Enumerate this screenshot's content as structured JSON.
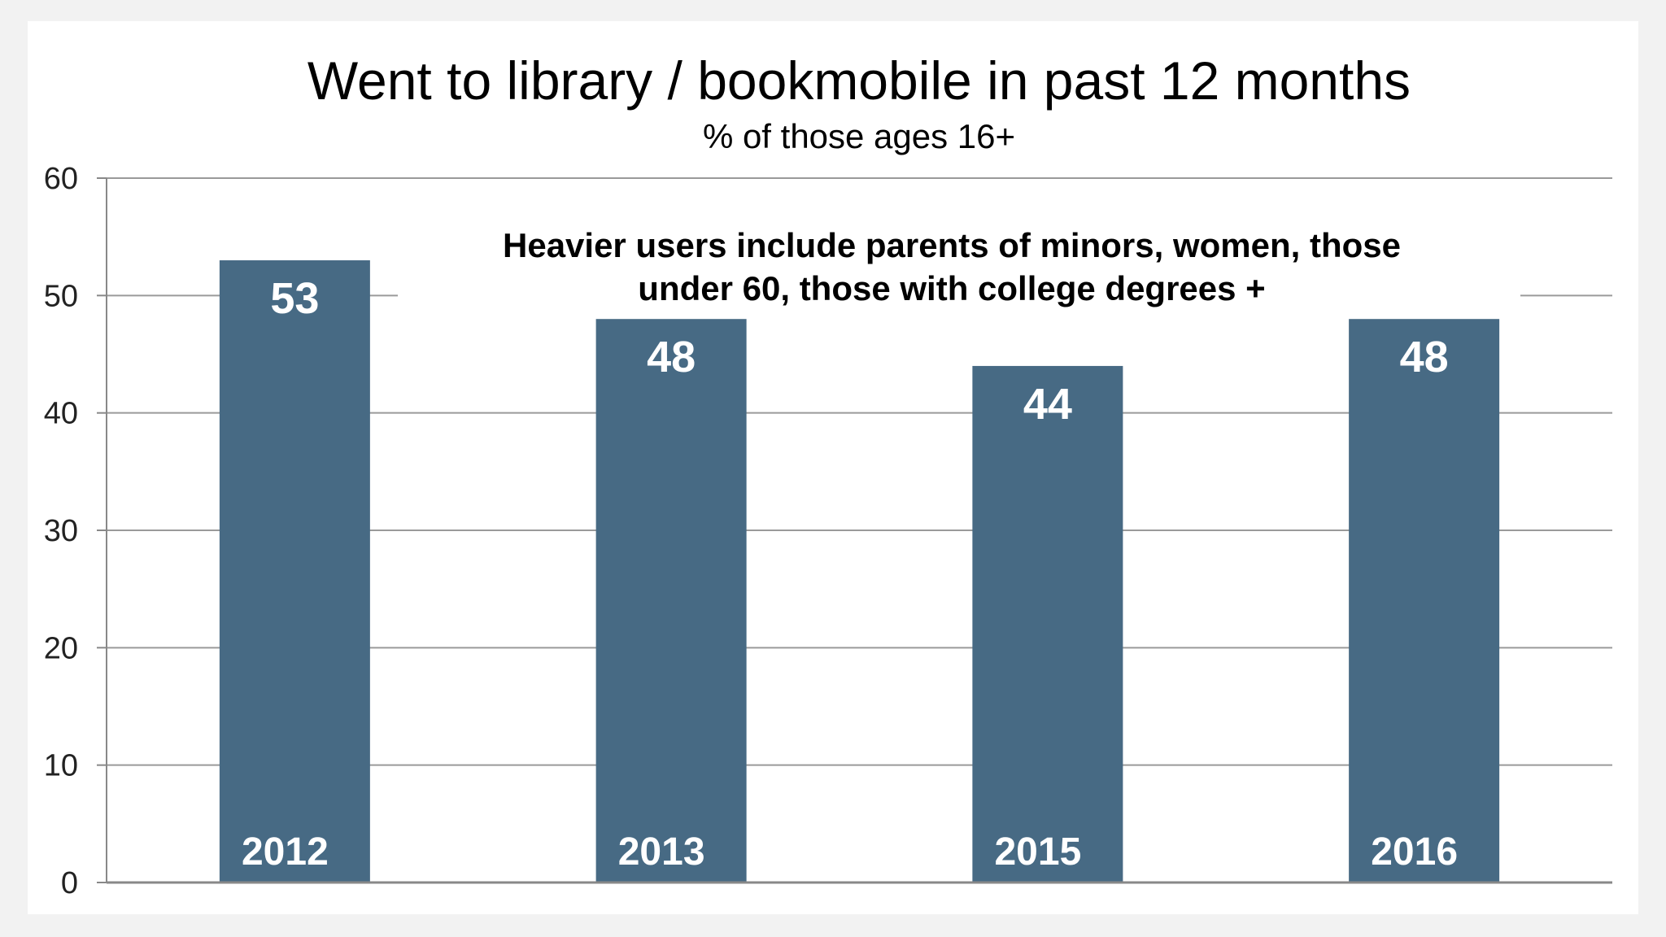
{
  "chart_data": {
    "type": "bar",
    "title": "Went to library / bookmobile in past 12 months",
    "subtitle": "% of those ages 16+",
    "categories": [
      "2012",
      "2013",
      "2015",
      "2016"
    ],
    "values": [
      53,
      48,
      44,
      48
    ],
    "xlabel": "",
    "ylabel": "",
    "ylim": [
      0,
      60
    ],
    "yticks": [
      0,
      10,
      20,
      30,
      40,
      50,
      60
    ],
    "grid": true,
    "legend": "none",
    "annotation": [
      "Heavier users include parents of minors, women, those",
      "under  60, those with college degrees +"
    ],
    "colors": {
      "bar": "#476A84",
      "grid": "#9a9a9a",
      "axis": "#888888"
    }
  }
}
